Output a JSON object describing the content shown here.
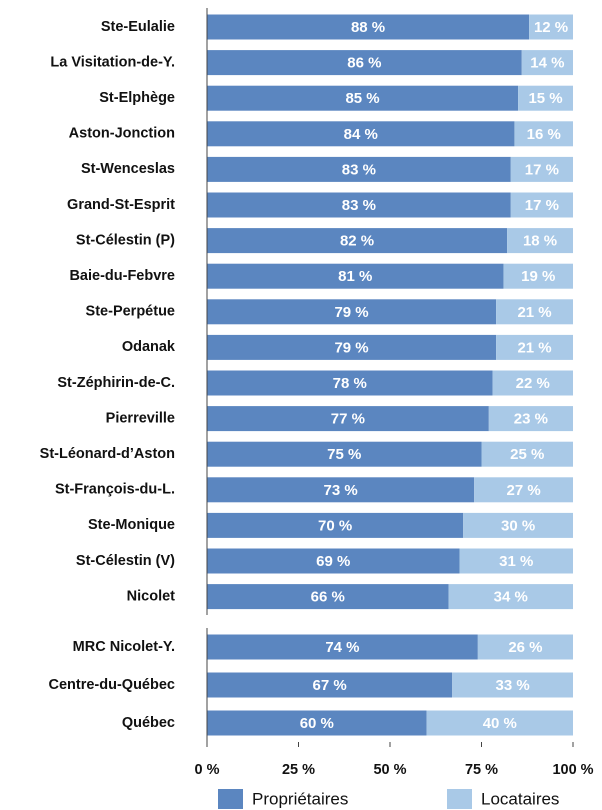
{
  "chart_data": {
    "type": "stacked-barh",
    "categories": [
      "Ste-Eulalie",
      "La Visitation-de-Y.",
      "St-Elphège",
      "Aston-Jonction",
      "St-Wenceslas",
      "Grand-St-Esprit",
      "St-Célestin (P)",
      "Baie-du-Febvre",
      "Ste-Perpétue",
      "Odanak",
      "St-Zéphirin-de-C.",
      "Pierreville",
      "St-Léonard-d’Aston",
      "St-François-du-L.",
      "Ste-Monique",
      "St-Célestin (V)",
      "Nicolet",
      "MRC Nicolet-Y.",
      "Centre-du-Québec",
      "Québec"
    ],
    "series": [
      {
        "name": "Propriétaires",
        "color": "#5b86c0",
        "values": [
          88,
          86,
          85,
          84,
          83,
          83,
          82,
          81,
          79,
          79,
          78,
          77,
          75,
          73,
          70,
          69,
          66,
          74,
          67,
          60
        ],
        "value_labels": [
          "88 %",
          "86 %",
          "85 %",
          "84 %",
          "83 %",
          "83 %",
          "82 %",
          "81 %",
          "79 %",
          "79 %",
          "78 %",
          "77 %",
          "75 %",
          "73 %",
          "70 %",
          "69 %",
          "66 %",
          "74 %",
          "67 %",
          "60 %"
        ]
      },
      {
        "name": "Locataires",
        "color": "#a9c9e7",
        "values": [
          12,
          14,
          15,
          16,
          17,
          17,
          18,
          19,
          21,
          21,
          22,
          23,
          25,
          27,
          30,
          31,
          34,
          26,
          33,
          40
        ],
        "value_labels": [
          "12 %",
          "14 %",
          "15 %",
          "16 %",
          "17 %",
          "17 %",
          "18 %",
          "19 %",
          "21 %",
          "21 %",
          "22 %",
          "23 %",
          "25 %",
          "27 %",
          "30 %",
          "31 %",
          "34 %",
          "26 %",
          "33 %",
          "40 %"
        ]
      }
    ],
    "xlim": [
      0,
      100
    ],
    "xticks": [
      {
        "value": 0,
        "label": "0 %"
      },
      {
        "value": 25,
        "label": "25 %"
      },
      {
        "value": 50,
        "label": "50 %"
      },
      {
        "value": 75,
        "label": "75 %"
      },
      {
        "value": 100,
        "label": "100 %"
      }
    ],
    "legend": "bottom"
  }
}
